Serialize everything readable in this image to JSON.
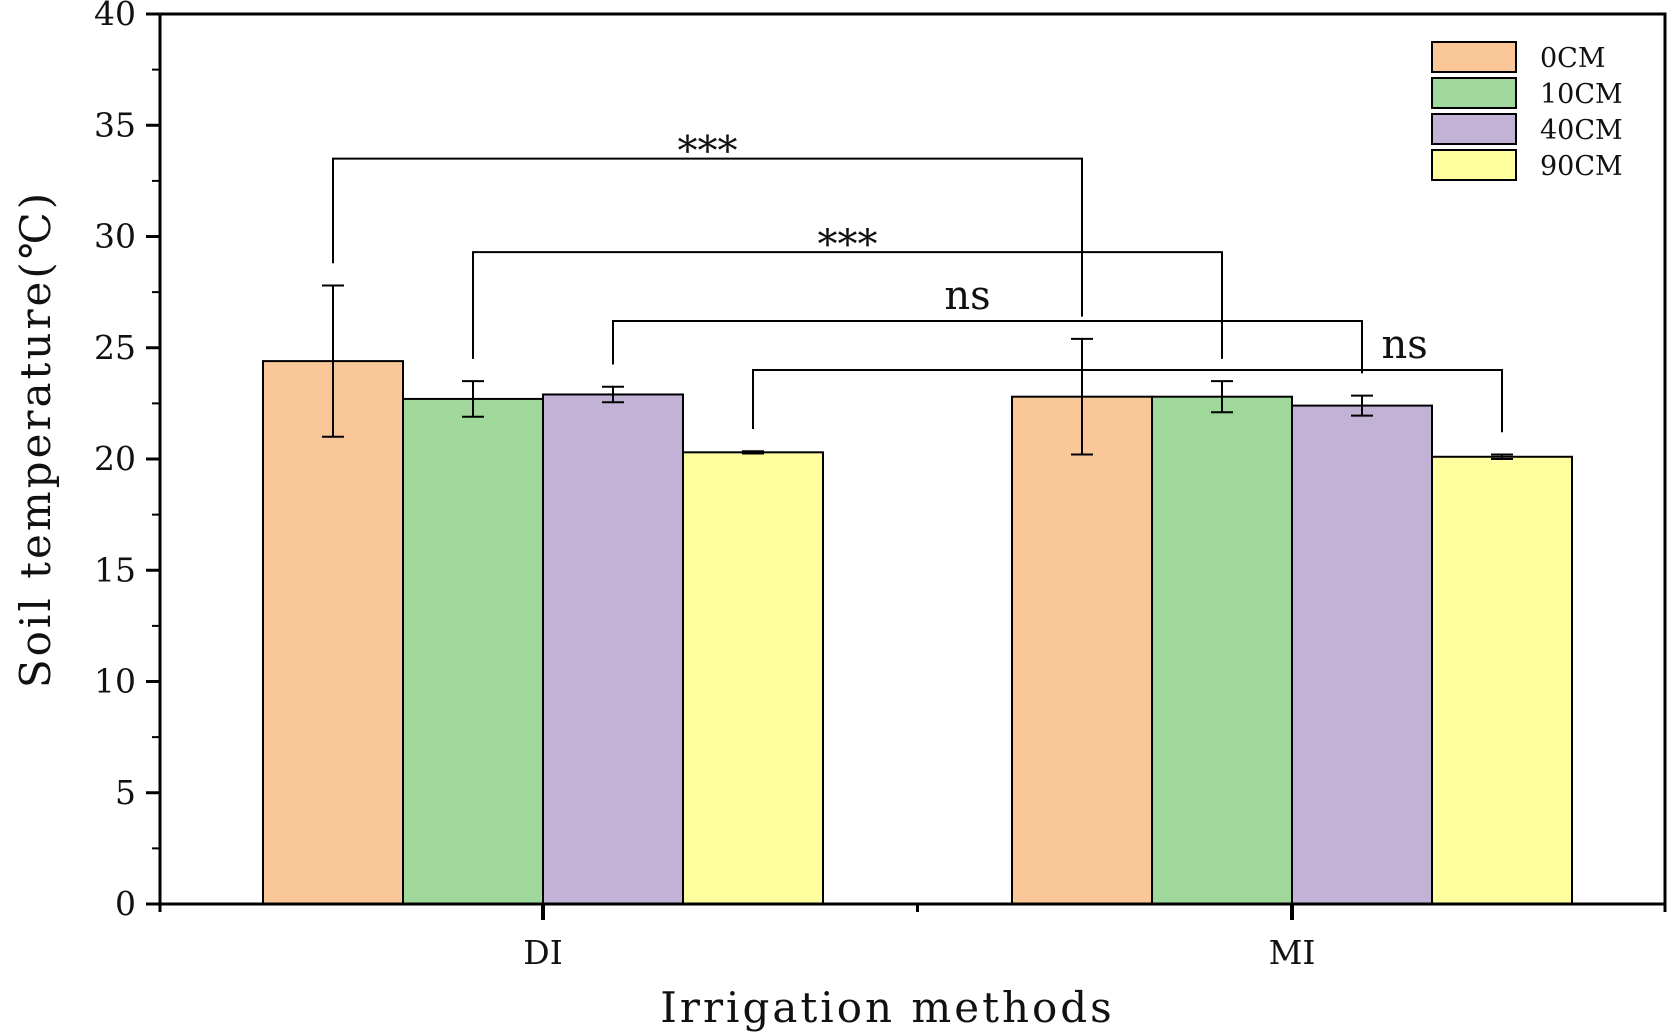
{
  "chart_data": {
    "type": "bar",
    "title": "",
    "xlabel": "Irrigation methods",
    "ylabel": "Soil temperature(℃)",
    "ylim": [
      0,
      40
    ],
    "yticks": [
      0,
      5,
      10,
      15,
      20,
      25,
      30,
      35,
      40
    ],
    "categories": [
      "DI",
      "MI"
    ],
    "series": [
      {
        "name": "0CM",
        "color": "#FAC898",
        "values": [
          24.4,
          22.8
        ],
        "errors": [
          3.4,
          2.6
        ]
      },
      {
        "name": "10CM",
        "color": "#9FD89A",
        "values": [
          22.7,
          22.8
        ],
        "errors": [
          0.8,
          0.7
        ]
      },
      {
        "name": "40CM",
        "color": "#C2B2D6",
        "values": [
          22.9,
          22.4
        ],
        "errors": [
          0.35,
          0.45
        ]
      },
      {
        "name": "90CM",
        "color": "#FFFFA0",
        "values": [
          20.3,
          20.1
        ],
        "errors": [
          0.05,
          0.1
        ]
      }
    ],
    "legend_position": "top-right",
    "grid": false,
    "significance": [
      {
        "label": "***",
        "from": {
          "category": 0,
          "series": 0
        },
        "to": {
          "category": 1,
          "series": 0
        }
      },
      {
        "label": "***",
        "from": {
          "category": 0,
          "series": 1
        },
        "to": {
          "category": 1,
          "series": 1
        }
      },
      {
        "label": "ns",
        "from": {
          "category": 0,
          "series": 2
        },
        "to": {
          "category": 1,
          "series": 2
        }
      },
      {
        "label": "ns",
        "from": {
          "category": 0,
          "series": 3
        },
        "to": {
          "category": 1,
          "series": 3
        }
      }
    ]
  }
}
